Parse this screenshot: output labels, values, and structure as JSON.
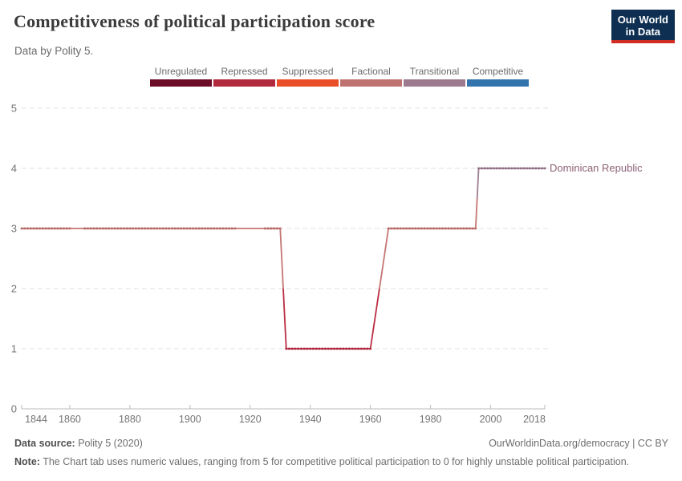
{
  "header": {
    "title": "Competitiveness of political participation score",
    "subtitle": "Data by Polity 5.",
    "logo": {
      "line1": "Our World",
      "line2": "in Data",
      "bg": "#0e2f52",
      "accent": "#cf2e24"
    }
  },
  "legend": {
    "items": [
      {
        "label": "Unregulated",
        "color": "#6d0c26"
      },
      {
        "label": "Repressed",
        "color": "#b12a3d"
      },
      {
        "label": "Suppressed",
        "color": "#e94e29"
      },
      {
        "label": "Factional",
        "color": "#bf7370"
      },
      {
        "label": "Transitional",
        "color": "#9d7a8e"
      },
      {
        "label": "Competitive",
        "color": "#3474ad"
      }
    ]
  },
  "chart_data": {
    "type": "line",
    "title": "Competitiveness of political participation score",
    "entity": "Dominican Republic",
    "xlim": [
      1844,
      2018
    ],
    "ylim": [
      0,
      5
    ],
    "x_ticks": [
      1844,
      1860,
      1880,
      1900,
      1920,
      1940,
      1960,
      1980,
      2000,
      2018
    ],
    "y_ticks": [
      0,
      1,
      2,
      3,
      4,
      5
    ],
    "grid": "dashed-horizontal",
    "legend_position": "top",
    "value_scale_note": "5 = competitive, 0 = highly unstable",
    "colors": {
      "Factional": {
        "line": "#c47673",
        "marker": "#b46260"
      },
      "Repressed": {
        "line": "#bb2d44",
        "marker": "#a92038"
      },
      "Transitional": {
        "line": "#9d7c90",
        "marker": "#8e6c82"
      }
    },
    "series": [
      {
        "name": "Dominican Republic",
        "segments": [
          {
            "x0": 1844,
            "x1": 1860,
            "v0": 3,
            "v1": 3,
            "markers": true,
            "cat": [
              "Factional"
            ]
          },
          {
            "x0": 1860,
            "x1": 1865,
            "v0": 3,
            "v1": 3,
            "markers": false,
            "cat": [
              "Factional"
            ]
          },
          {
            "x0": 1865,
            "x1": 1915,
            "v0": 3,
            "v1": 3,
            "markers": true,
            "cat": [
              "Factional"
            ]
          },
          {
            "x0": 1915,
            "x1": 1925,
            "v0": 3,
            "v1": 3,
            "markers": false,
            "cat": [
              "Factional"
            ]
          },
          {
            "x0": 1925,
            "x1": 1930,
            "v0": 3,
            "v1": 3,
            "markers": true,
            "cat": [
              "Factional"
            ]
          },
          {
            "x0": 1930,
            "x1": 1932,
            "v0": 3,
            "v1": 1,
            "markers": false,
            "cat": [
              "Factional",
              "Repressed"
            ]
          },
          {
            "x0": 1932,
            "x1": 1960,
            "v0": 1,
            "v1": 1,
            "markers": true,
            "cat": [
              "Repressed"
            ]
          },
          {
            "x0": 1960,
            "x1": 1966,
            "v0": 1,
            "v1": 3,
            "markers": false,
            "cat": [
              "Repressed",
              "Factional"
            ]
          },
          {
            "x0": 1966,
            "x1": 1995,
            "v0": 3,
            "v1": 3,
            "markers": true,
            "cat": [
              "Factional"
            ]
          },
          {
            "x0": 1995,
            "x1": 1996,
            "v0": 3,
            "v1": 4,
            "markers": false,
            "cat": [
              "Factional",
              "Transitional"
            ]
          },
          {
            "x0": 1996,
            "x1": 2018,
            "v0": 4,
            "v1": 4,
            "markers": true,
            "cat": [
              "Transitional"
            ]
          }
        ]
      }
    ],
    "entity_label": {
      "text": "Dominican Republic",
      "color": "#8d6176"
    }
  },
  "footer": {
    "source_label": "Data source:",
    "source_value": " Polity 5 (2020)",
    "link": "OurWorldinData.org/democracy",
    "license": " | CC BY",
    "note_label": "Note:",
    "note_value": " The Chart tab uses numeric values, ranging from 5 for competitive political participation to 0 for highly unstable political participation."
  }
}
